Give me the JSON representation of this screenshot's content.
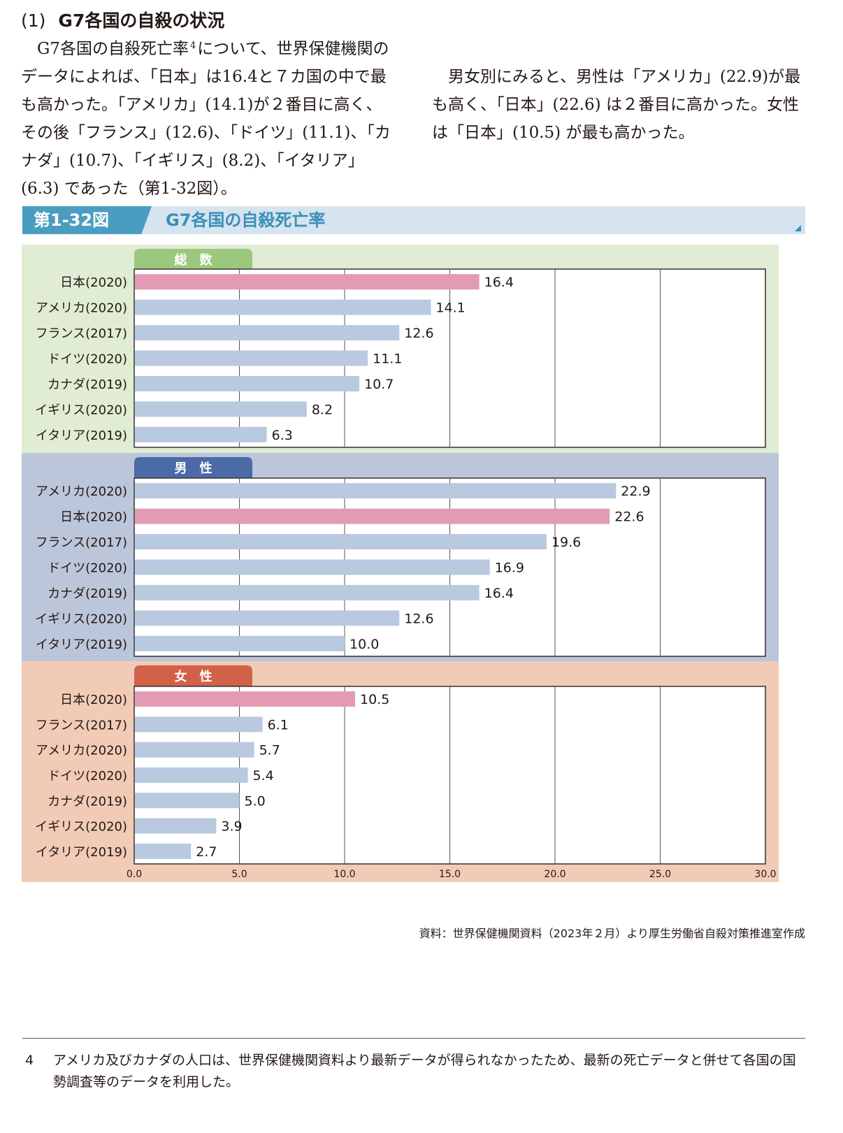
{
  "section": {
    "number": "(1)",
    "title": "G7各国の自殺の状況",
    "para1_a": "G7各国の自殺死亡率",
    "para1_sup": "4",
    "para1_b": "について、世界保健機関のデータによれば、「日本」は16.4と７カ国の中で最も高かった。「アメリカ」(14.1)が２番目に高く、その後「フランス」(12.6)、「ドイツ」(11.1)、「カナダ」(10.7)、「イギリス」(8.2)、「イタリア」(6.3) であった（第1-32図）。",
    "para2": "男女別にみると、男性は「アメリカ」(22.9)が最も高く、「日本」(22.6) は２番目に高かった。女性は「日本」(10.5) が最も高かった。"
  },
  "figure": {
    "number": "第1-32図",
    "title": "G7各国の自殺死亡率"
  },
  "chart_data": {
    "type": "bar",
    "orientation": "horizontal",
    "xlim": [
      0,
      30
    ],
    "xticks": [
      "0.0",
      "5.0",
      "10.0",
      "15.0",
      "20.0",
      "25.0",
      "30.0"
    ],
    "grid": true,
    "panels": [
      {
        "label": "総　数",
        "tab_color": "#9cc87e",
        "bg_color": "#e0ecd3",
        "categories": [
          "日本(2020)",
          "アメリカ(2020)",
          "フランス(2017)",
          "ドイツ(2020)",
          "カナダ(2019)",
          "イギリス(2020)",
          "イタリア(2019)"
        ],
        "values": [
          16.4,
          14.1,
          12.6,
          11.1,
          10.7,
          8.2,
          6.3
        ],
        "labels": [
          "16.4",
          "14.1",
          "12.6",
          "11.1",
          "10.7",
          "8.2",
          "6.3"
        ],
        "highlight": [
          true,
          false,
          false,
          false,
          false,
          false,
          false
        ]
      },
      {
        "label": "男　性",
        "tab_color": "#4c6aa8",
        "bg_color": "#bcc6da",
        "categories": [
          "アメリカ(2020)",
          "日本(2020)",
          "フランス(2017)",
          "ドイツ(2020)",
          "カナダ(2019)",
          "イギリス(2020)",
          "イタリア(2019)"
        ],
        "values": [
          22.9,
          22.6,
          19.6,
          16.9,
          16.4,
          12.6,
          10.0
        ],
        "labels": [
          "22.9",
          "22.6",
          "19.6",
          "16.9",
          "16.4",
          "12.6",
          "10.0"
        ],
        "highlight": [
          false,
          true,
          false,
          false,
          false,
          false,
          false
        ]
      },
      {
        "label": "女　性",
        "tab_color": "#d2614a",
        "bg_color": "#f2cbb6",
        "categories": [
          "日本(2020)",
          "フランス(2017)",
          "アメリカ(2020)",
          "ドイツ(2020)",
          "カナダ(2019)",
          "イギリス(2020)",
          "イタリア(2019)"
        ],
        "values": [
          10.5,
          6.1,
          5.7,
          5.4,
          5.0,
          3.9,
          2.7
        ],
        "labels": [
          "10.5",
          "6.1",
          "5.7",
          "5.4",
          "5.0",
          "3.9",
          "2.7"
        ],
        "highlight": [
          true,
          false,
          false,
          false,
          false,
          false,
          false
        ]
      }
    ],
    "bar_color": "#b9c9df",
    "highlight_color": "#e29bb2"
  },
  "source": "資料：世界保健機関資料（2023年２月）より厚生労働省自殺対策推進室作成",
  "footnote": {
    "number": "4",
    "text": "アメリカ及びカナダの人口は、世界保健機関資料より最新データが得られなかったため、最新の死亡データと併せて各国の国勢調査等のデータを利用した。"
  }
}
